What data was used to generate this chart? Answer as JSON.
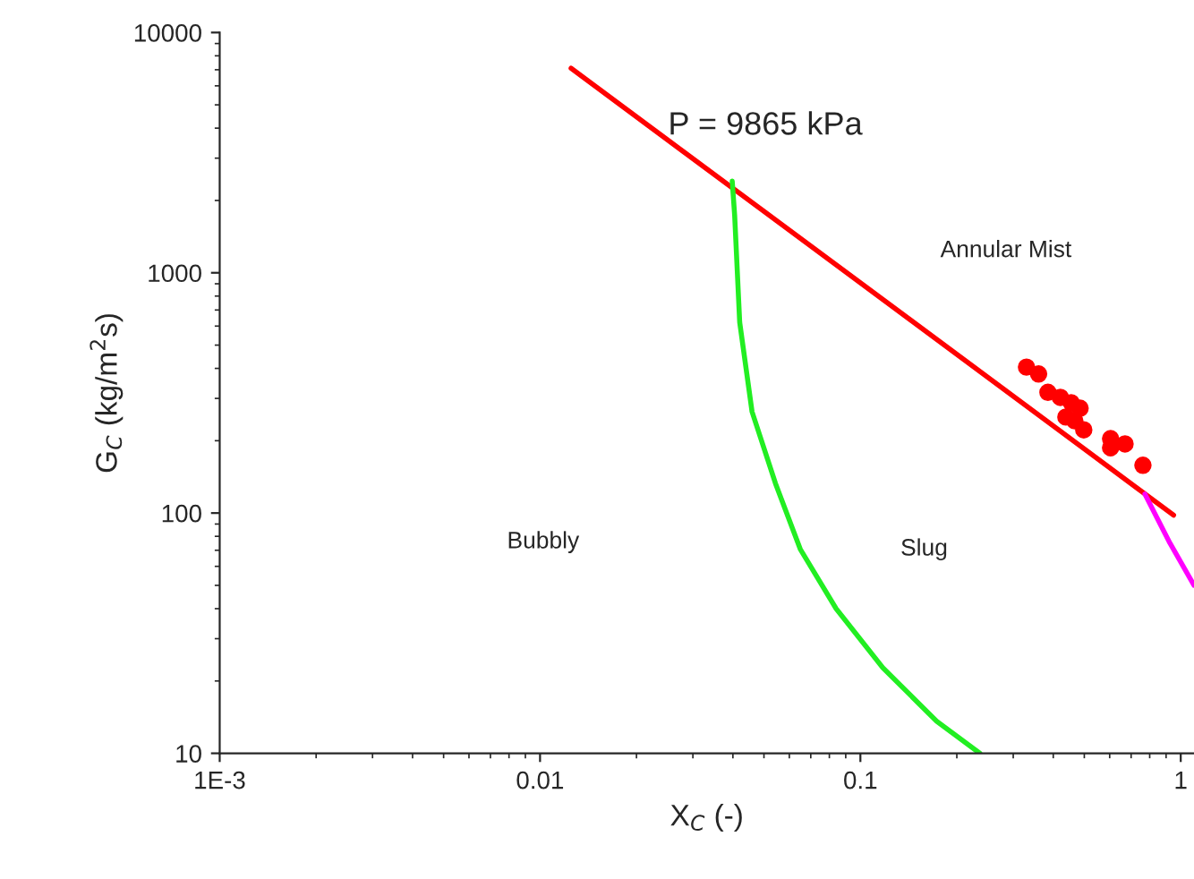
{
  "chart_data": {
    "type": "line",
    "xlabel": "X$_{C}$ (-)",
    "ylabel": "G$_{C}$ (kg/m$^{2}$s)",
    "log": "xy",
    "grid": false,
    "legend": false,
    "xlim": [
      0.001,
      1.1
    ],
    "ylim": [
      10,
      10000
    ],
    "xticks": [
      {
        "value": 0.001,
        "label": "1E-3"
      },
      0.01,
      0.1,
      1
    ],
    "yticks": [
      10,
      100,
      1000,
      10000
    ],
    "series": [
      {
        "color": "#ff0000",
        "x": [
          0.0125,
          0.95
        ],
        "values": [
          7100,
          98
        ]
      },
      {
        "type": "line",
        "color": "#22ee22",
        "x": [
          0.0398,
          0.0405,
          0.042,
          0.0459,
          0.0543,
          0.065,
          0.084,
          0.1175,
          0.173,
          0.236
        ],
        "values": [
          2410,
          1740,
          622,
          264,
          133,
          70.5,
          40,
          22.7,
          13.6,
          10
        ]
      },
      {
        "type": "line",
        "color": "#ff00ff",
        "x": [
          0.773,
          0.925,
          1.1
        ],
        "values": [
          120,
          75,
          50
        ]
      },
      {
        "type": "scatter",
        "color": "#ff0000",
        "marker": "circle",
        "x": [
          0.33,
          0.36,
          0.385,
          0.421,
          0.455,
          0.485,
          0.438,
          0.467,
          0.498,
          0.604,
          0.67,
          0.604,
          0.762
        ],
        "values": [
          405,
          379,
          318,
          303,
          288,
          273,
          251,
          242,
          222,
          204,
          194,
          187,
          158
        ]
      }
    ],
    "annotations": [
      "P = 9865 kPa",
      "Annular Mist",
      "Bubbly",
      "Slug"
    ]
  }
}
